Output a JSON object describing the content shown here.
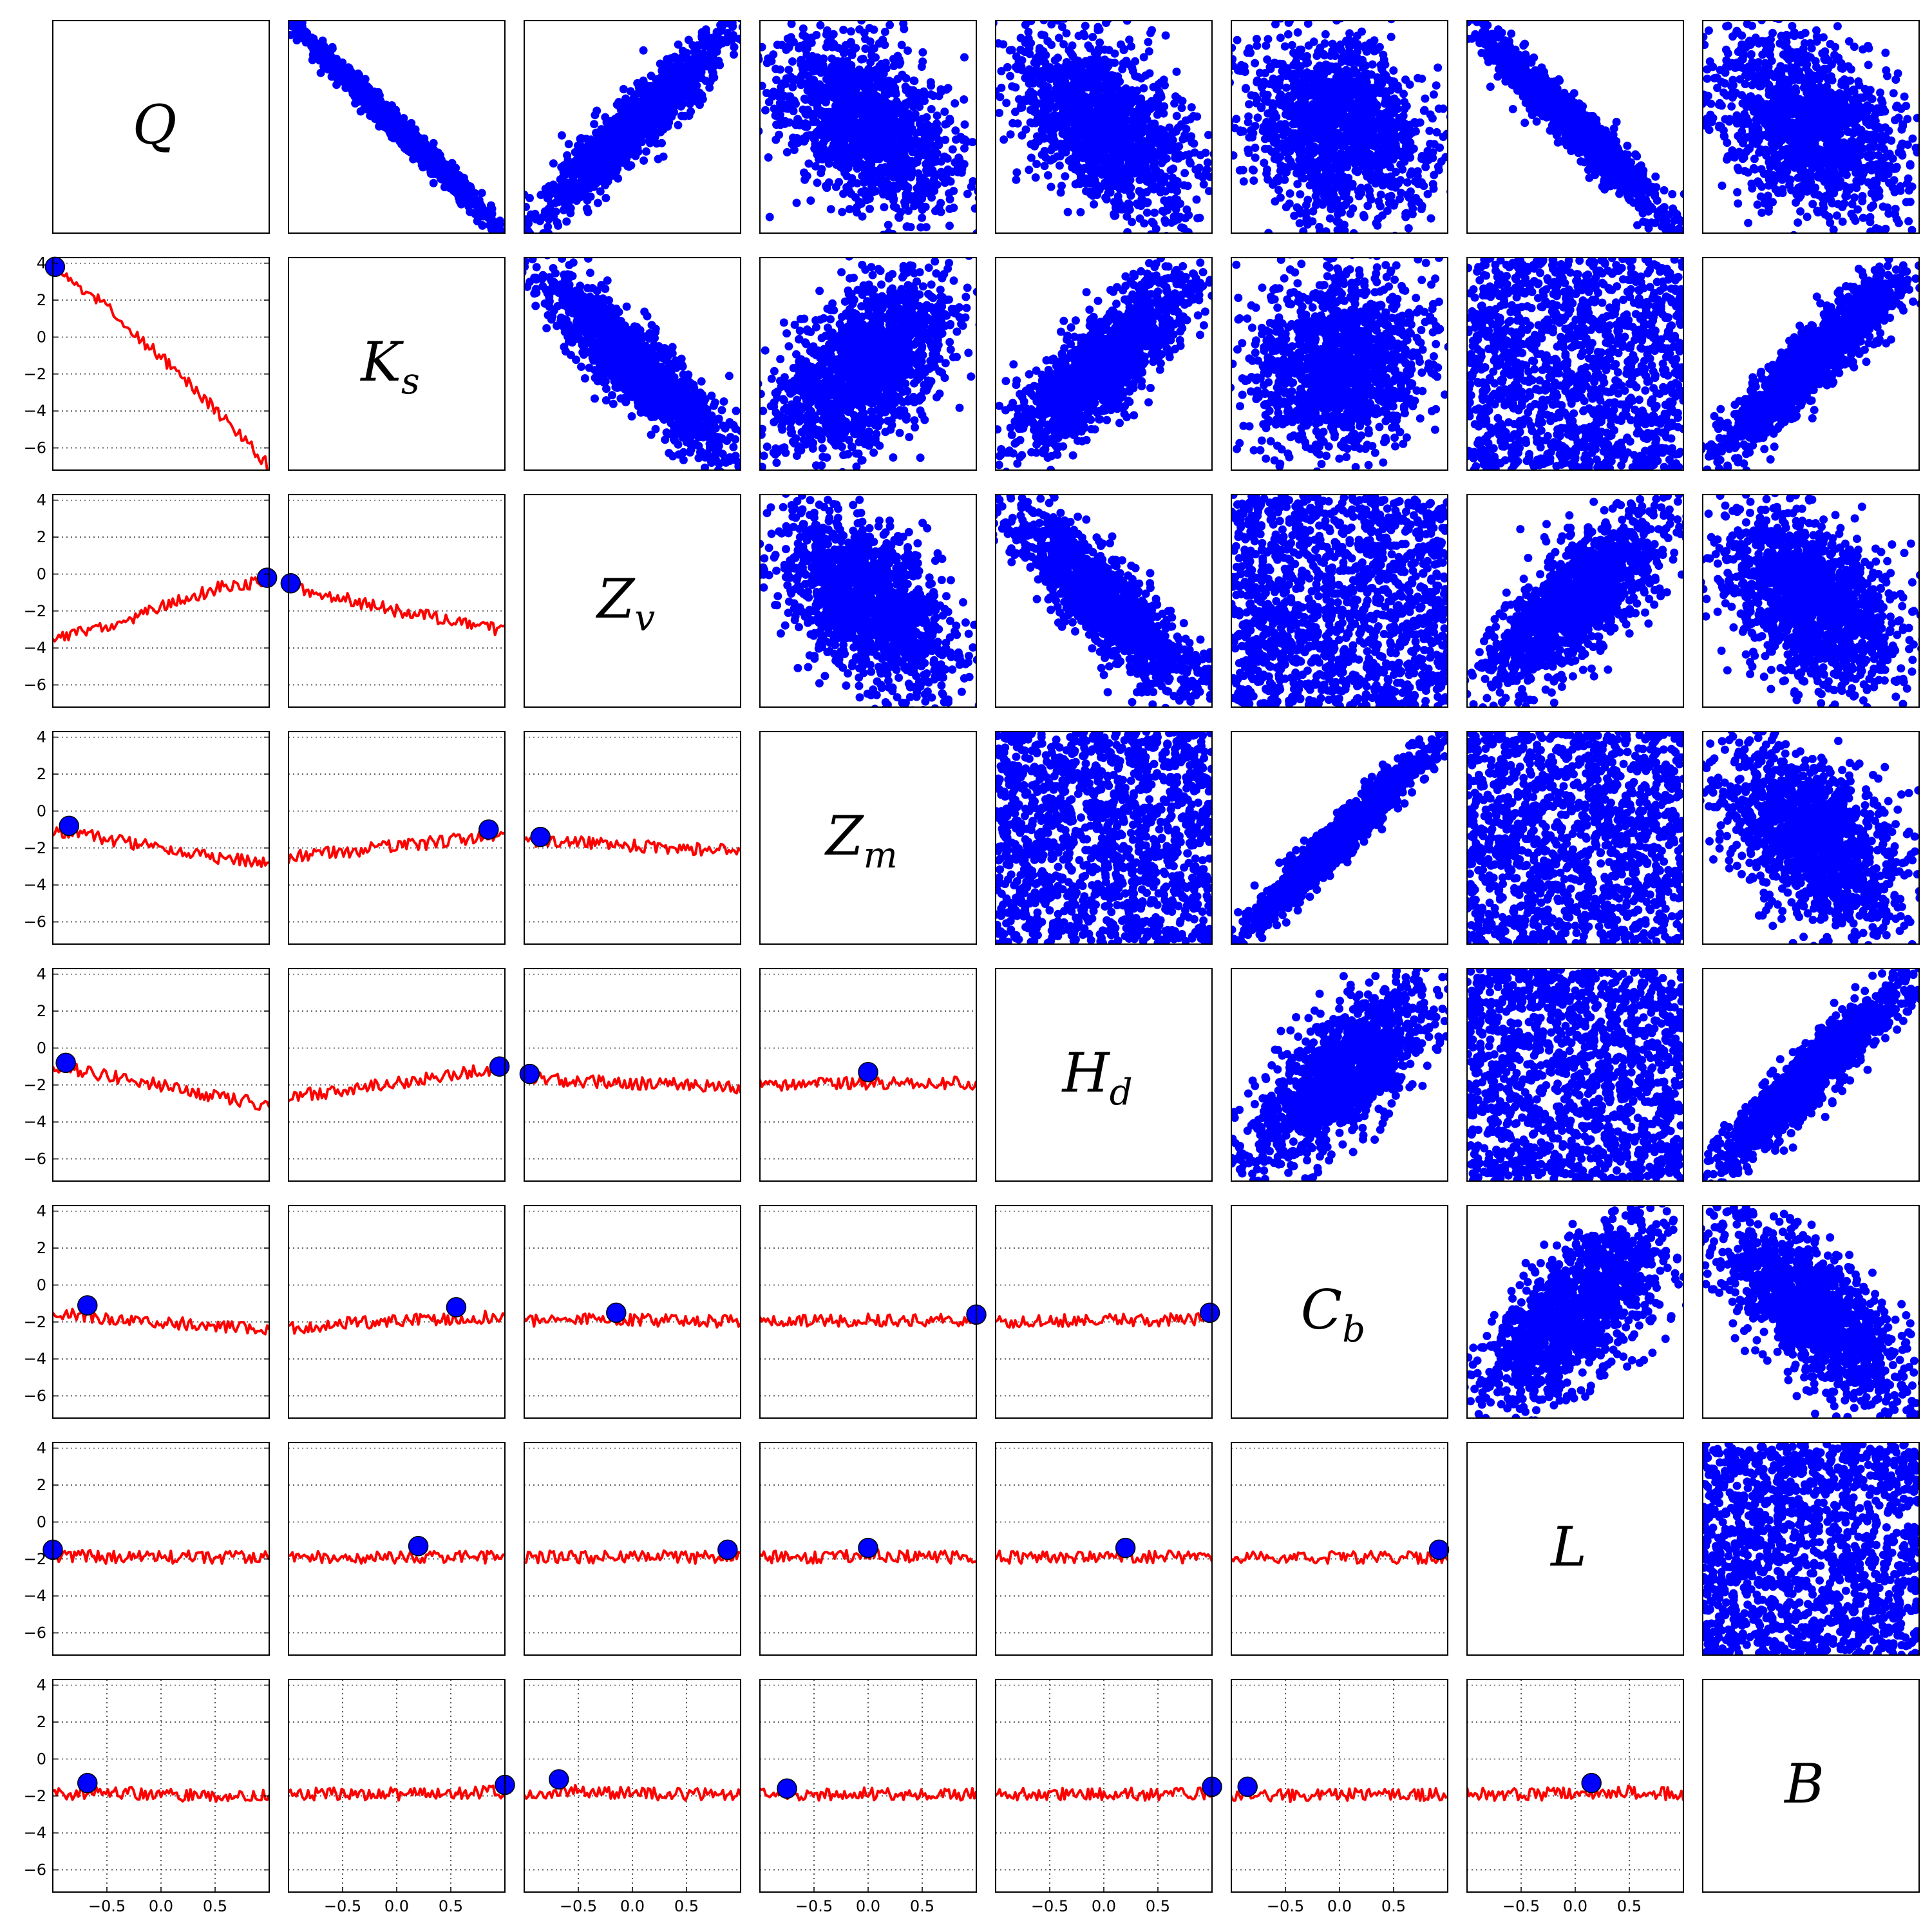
{
  "figure": {
    "variables": [
      {
        "symbol": "Q",
        "sub": ""
      },
      {
        "symbol": "K",
        "sub": "s"
      },
      {
        "symbol": "Z",
        "sub": "v"
      },
      {
        "symbol": "Z",
        "sub": "m"
      },
      {
        "symbol": "H",
        "sub": "d"
      },
      {
        "symbol": "C",
        "sub": "b"
      },
      {
        "symbol": "L",
        "sub": ""
      },
      {
        "symbol": "B",
        "sub": ""
      }
    ],
    "x_ticks": [
      "−0.5",
      "0.0",
      "0.5"
    ],
    "y_ticks": [
      "4",
      "2",
      "0",
      "−2",
      "−4",
      "−6"
    ]
  },
  "chart_data": {
    "type": "scatter",
    "title": "",
    "layout": "8x8 pair plot",
    "diagonal": "variable labels",
    "upper_triangle": {
      "type": "scatter",
      "color": "#0000ff",
      "correlations": [
        [
          null,
          -0.99,
          0.93,
          -0.45,
          -0.5,
          -0.2,
          -0.96,
          -0.35
        ],
        [
          null,
          null,
          -0.88,
          0.5,
          0.82,
          0.15,
          0.0,
          0.92
        ],
        [
          null,
          null,
          null,
          -0.5,
          -0.85,
          0.0,
          0.75,
          -0.4
        ],
        [
          null,
          null,
          null,
          null,
          0.0,
          0.97,
          0.0,
          -0.5
        ],
        [
          null,
          null,
          null,
          null,
          null,
          0.72,
          0.0,
          0.93
        ],
        [
          null,
          null,
          null,
          null,
          null,
          null,
          0.65,
          -0.7
        ],
        [
          null,
          null,
          null,
          null,
          null,
          null,
          null,
          0.0
        ]
      ]
    },
    "lower_triangle": {
      "type": "line",
      "line_color": "#ff0000",
      "marker_color": "#0000ff",
      "xlim": [
        -1,
        1
      ],
      "ylim": [
        -7.2,
        4.3
      ],
      "x_ticks": [
        -0.5,
        0.0,
        0.5
      ],
      "y_ticks": [
        4,
        2,
        0,
        -2,
        -4,
        -6
      ],
      "grid": "dotted",
      "panels": [
        {
          "row": 1,
          "col": 0,
          "x": [
            -1.0,
            -0.5,
            0.0,
            0.5,
            1.0
          ],
          "y": [
            4.0,
            1.6,
            -1.1,
            -3.9,
            -7.0
          ],
          "marker": [
            -0.98,
            3.8
          ]
        },
        {
          "row": 2,
          "col": 0,
          "x": [
            -1.0,
            -0.5,
            0.0,
            0.5,
            1.0
          ],
          "y": [
            -3.5,
            -2.8,
            -1.8,
            -0.8,
            -0.3
          ],
          "marker": [
            0.98,
            -0.2
          ]
        },
        {
          "row": 2,
          "col": 1,
          "x": [
            -1.0,
            -0.5,
            0.0,
            0.5,
            1.0
          ],
          "y": [
            -0.6,
            -1.3,
            -2.0,
            -2.5,
            -3.1
          ],
          "marker": [
            -0.98,
            -0.5
          ]
        },
        {
          "row": 3,
          "col": 0,
          "x": [
            -1.0,
            -0.5,
            0.0,
            0.5,
            1.0
          ],
          "y": [
            -1.0,
            -1.5,
            -2.0,
            -2.5,
            -2.8
          ],
          "marker": [
            -0.85,
            -0.8
          ]
        },
        {
          "row": 3,
          "col": 1,
          "x": [
            -1.0,
            -0.5,
            0.0,
            0.5,
            1.0
          ],
          "y": [
            -2.5,
            -2.2,
            -1.9,
            -1.6,
            -1.2
          ],
          "marker": [
            0.85,
            -1.0
          ]
        },
        {
          "row": 3,
          "col": 2,
          "x": [
            -1.0,
            -0.5,
            0.0,
            0.5,
            1.0
          ],
          "y": [
            -1.6,
            -1.7,
            -1.9,
            -2.0,
            -2.2
          ],
          "marker": [
            -0.85,
            -1.4
          ]
        },
        {
          "row": 4,
          "col": 0,
          "x": [
            -1.0,
            -0.5,
            0.0,
            0.5,
            1.0
          ],
          "y": [
            -0.9,
            -1.5,
            -2.0,
            -2.6,
            -3.1
          ],
          "marker": [
            -0.88,
            -0.8
          ]
        },
        {
          "row": 4,
          "col": 1,
          "x": [
            -1.0,
            -0.5,
            0.0,
            0.5,
            1.0
          ],
          "y": [
            -2.6,
            -2.3,
            -1.9,
            -1.5,
            -1.0
          ],
          "marker": [
            0.95,
            -1.0
          ]
        },
        {
          "row": 4,
          "col": 2,
          "x": [
            -1.0,
            -0.5,
            0.0,
            0.5,
            1.0
          ],
          "y": [
            -1.6,
            -1.8,
            -1.9,
            -2.0,
            -2.1
          ],
          "marker": [
            -0.95,
            -1.4
          ]
        },
        {
          "row": 4,
          "col": 3,
          "x": [
            -1.0,
            -0.5,
            0.0,
            0.5,
            1.0
          ],
          "y": [
            -2.0,
            -1.9,
            -1.9,
            -1.9,
            -1.9
          ],
          "marker": [
            0.0,
            -1.3
          ]
        },
        {
          "row": 5,
          "col": 0,
          "x": [
            -1.0,
            -0.5,
            0.0,
            0.5,
            1.0
          ],
          "y": [
            -1.5,
            -1.8,
            -2.0,
            -2.2,
            -2.4
          ],
          "marker": [
            -0.68,
            -1.1
          ]
        },
        {
          "row": 5,
          "col": 1,
          "x": [
            -1.0,
            -0.5,
            0.0,
            0.5,
            1.0
          ],
          "y": [
            -2.3,
            -2.1,
            -1.9,
            -1.8,
            -1.7
          ],
          "marker": [
            0.55,
            -1.2
          ]
        },
        {
          "row": 5,
          "col": 2,
          "x": [
            -1.0,
            -0.5,
            0.0,
            0.5,
            1.0
          ],
          "y": [
            -1.9,
            -1.9,
            -1.9,
            -1.9,
            -2.0
          ],
          "marker": [
            -0.15,
            -1.5
          ]
        },
        {
          "row": 5,
          "col": 3,
          "x": [
            -1.0,
            -0.5,
            0.0,
            0.5,
            1.0
          ],
          "y": [
            -1.9,
            -1.9,
            -1.9,
            -1.9,
            -1.9
          ],
          "marker": [
            1.0,
            -1.6
          ]
        },
        {
          "row": 5,
          "col": 4,
          "x": [
            -1.0,
            -0.5,
            0.0,
            0.5,
            1.0
          ],
          "y": [
            -2.0,
            -1.9,
            -1.9,
            -1.9,
            -1.8
          ],
          "marker": [
            0.98,
            -1.5
          ]
        },
        {
          "row": 6,
          "col": 0,
          "x": [
            -1.0,
            -0.5,
            0.0,
            0.5,
            1.0
          ],
          "y": [
            -1.8,
            -1.9,
            -1.9,
            -1.9,
            -1.9
          ],
          "marker": [
            -1.0,
            -1.5
          ]
        },
        {
          "row": 6,
          "col": 1,
          "x": [
            -1.0,
            -0.5,
            0.0,
            0.5,
            1.0
          ],
          "y": [
            -1.9,
            -1.9,
            -1.9,
            -1.9,
            -1.9
          ],
          "marker": [
            0.2,
            -1.3
          ]
        },
        {
          "row": 6,
          "col": 2,
          "x": [
            -1.0,
            -0.5,
            0.0,
            0.5,
            1.0
          ],
          "y": [
            -1.9,
            -1.9,
            -1.9,
            -1.9,
            -1.9
          ],
          "marker": [
            0.88,
            -1.5
          ]
        },
        {
          "row": 6,
          "col": 3,
          "x": [
            -1.0,
            -0.5,
            0.0,
            0.5,
            1.0
          ],
          "y": [
            -1.9,
            -1.9,
            -1.8,
            -1.9,
            -1.9
          ],
          "marker": [
            0.0,
            -1.4
          ]
        },
        {
          "row": 6,
          "col": 4,
          "x": [
            -1.0,
            -0.5,
            0.0,
            0.5,
            1.0
          ],
          "y": [
            -1.9,
            -1.9,
            -1.9,
            -1.9,
            -1.9
          ],
          "marker": [
            0.2,
            -1.4
          ]
        },
        {
          "row": 6,
          "col": 5,
          "x": [
            -1.0,
            -0.5,
            0.0,
            0.5,
            1.0
          ],
          "y": [
            -1.9,
            -1.9,
            -1.9,
            -1.9,
            -1.9
          ],
          "marker": [
            0.92,
            -1.5
          ]
        },
        {
          "row": 7,
          "col": 0,
          "x": [
            -1.0,
            -0.5,
            0.0,
            0.5,
            1.0
          ],
          "y": [
            -1.9,
            -1.8,
            -1.9,
            -2.0,
            -2.0
          ],
          "marker": [
            -0.68,
            -1.3
          ]
        },
        {
          "row": 7,
          "col": 1,
          "x": [
            -1.0,
            -0.5,
            0.0,
            0.5,
            1.0
          ],
          "y": [
            -1.9,
            -1.9,
            -1.9,
            -1.8,
            -1.8
          ],
          "marker": [
            1.0,
            -1.4
          ]
        },
        {
          "row": 7,
          "col": 2,
          "x": [
            -1.0,
            -0.5,
            0.0,
            0.5,
            1.0
          ],
          "y": [
            -2.0,
            -1.7,
            -1.9,
            -1.9,
            -1.9
          ],
          "marker": [
            -0.68,
            -1.1
          ]
        },
        {
          "row": 7,
          "col": 3,
          "x": [
            -1.0,
            -0.5,
            0.0,
            0.5,
            1.0
          ],
          "y": [
            -1.9,
            -1.9,
            -1.9,
            -1.9,
            -1.9
          ],
          "marker": [
            -0.75,
            -1.6
          ]
        },
        {
          "row": 7,
          "col": 4,
          "x": [
            -1.0,
            -0.5,
            0.0,
            0.5,
            1.0
          ],
          "y": [
            -1.9,
            -1.9,
            -1.9,
            -1.9,
            -1.9
          ],
          "marker": [
            1.0,
            -1.5
          ]
        },
        {
          "row": 7,
          "col": 5,
          "x": [
            -1.0,
            -0.5,
            0.0,
            0.5,
            1.0
          ],
          "y": [
            -1.9,
            -2.0,
            -1.9,
            -1.9,
            -1.9
          ],
          "marker": [
            -0.85,
            -1.5
          ]
        },
        {
          "row": 7,
          "col": 6,
          "x": [
            -1.0,
            -0.5,
            0.0,
            0.5,
            1.0
          ],
          "y": [
            -1.9,
            -1.9,
            -1.9,
            -1.8,
            -1.9
          ],
          "marker": [
            0.15,
            -1.3
          ]
        }
      ]
    }
  }
}
